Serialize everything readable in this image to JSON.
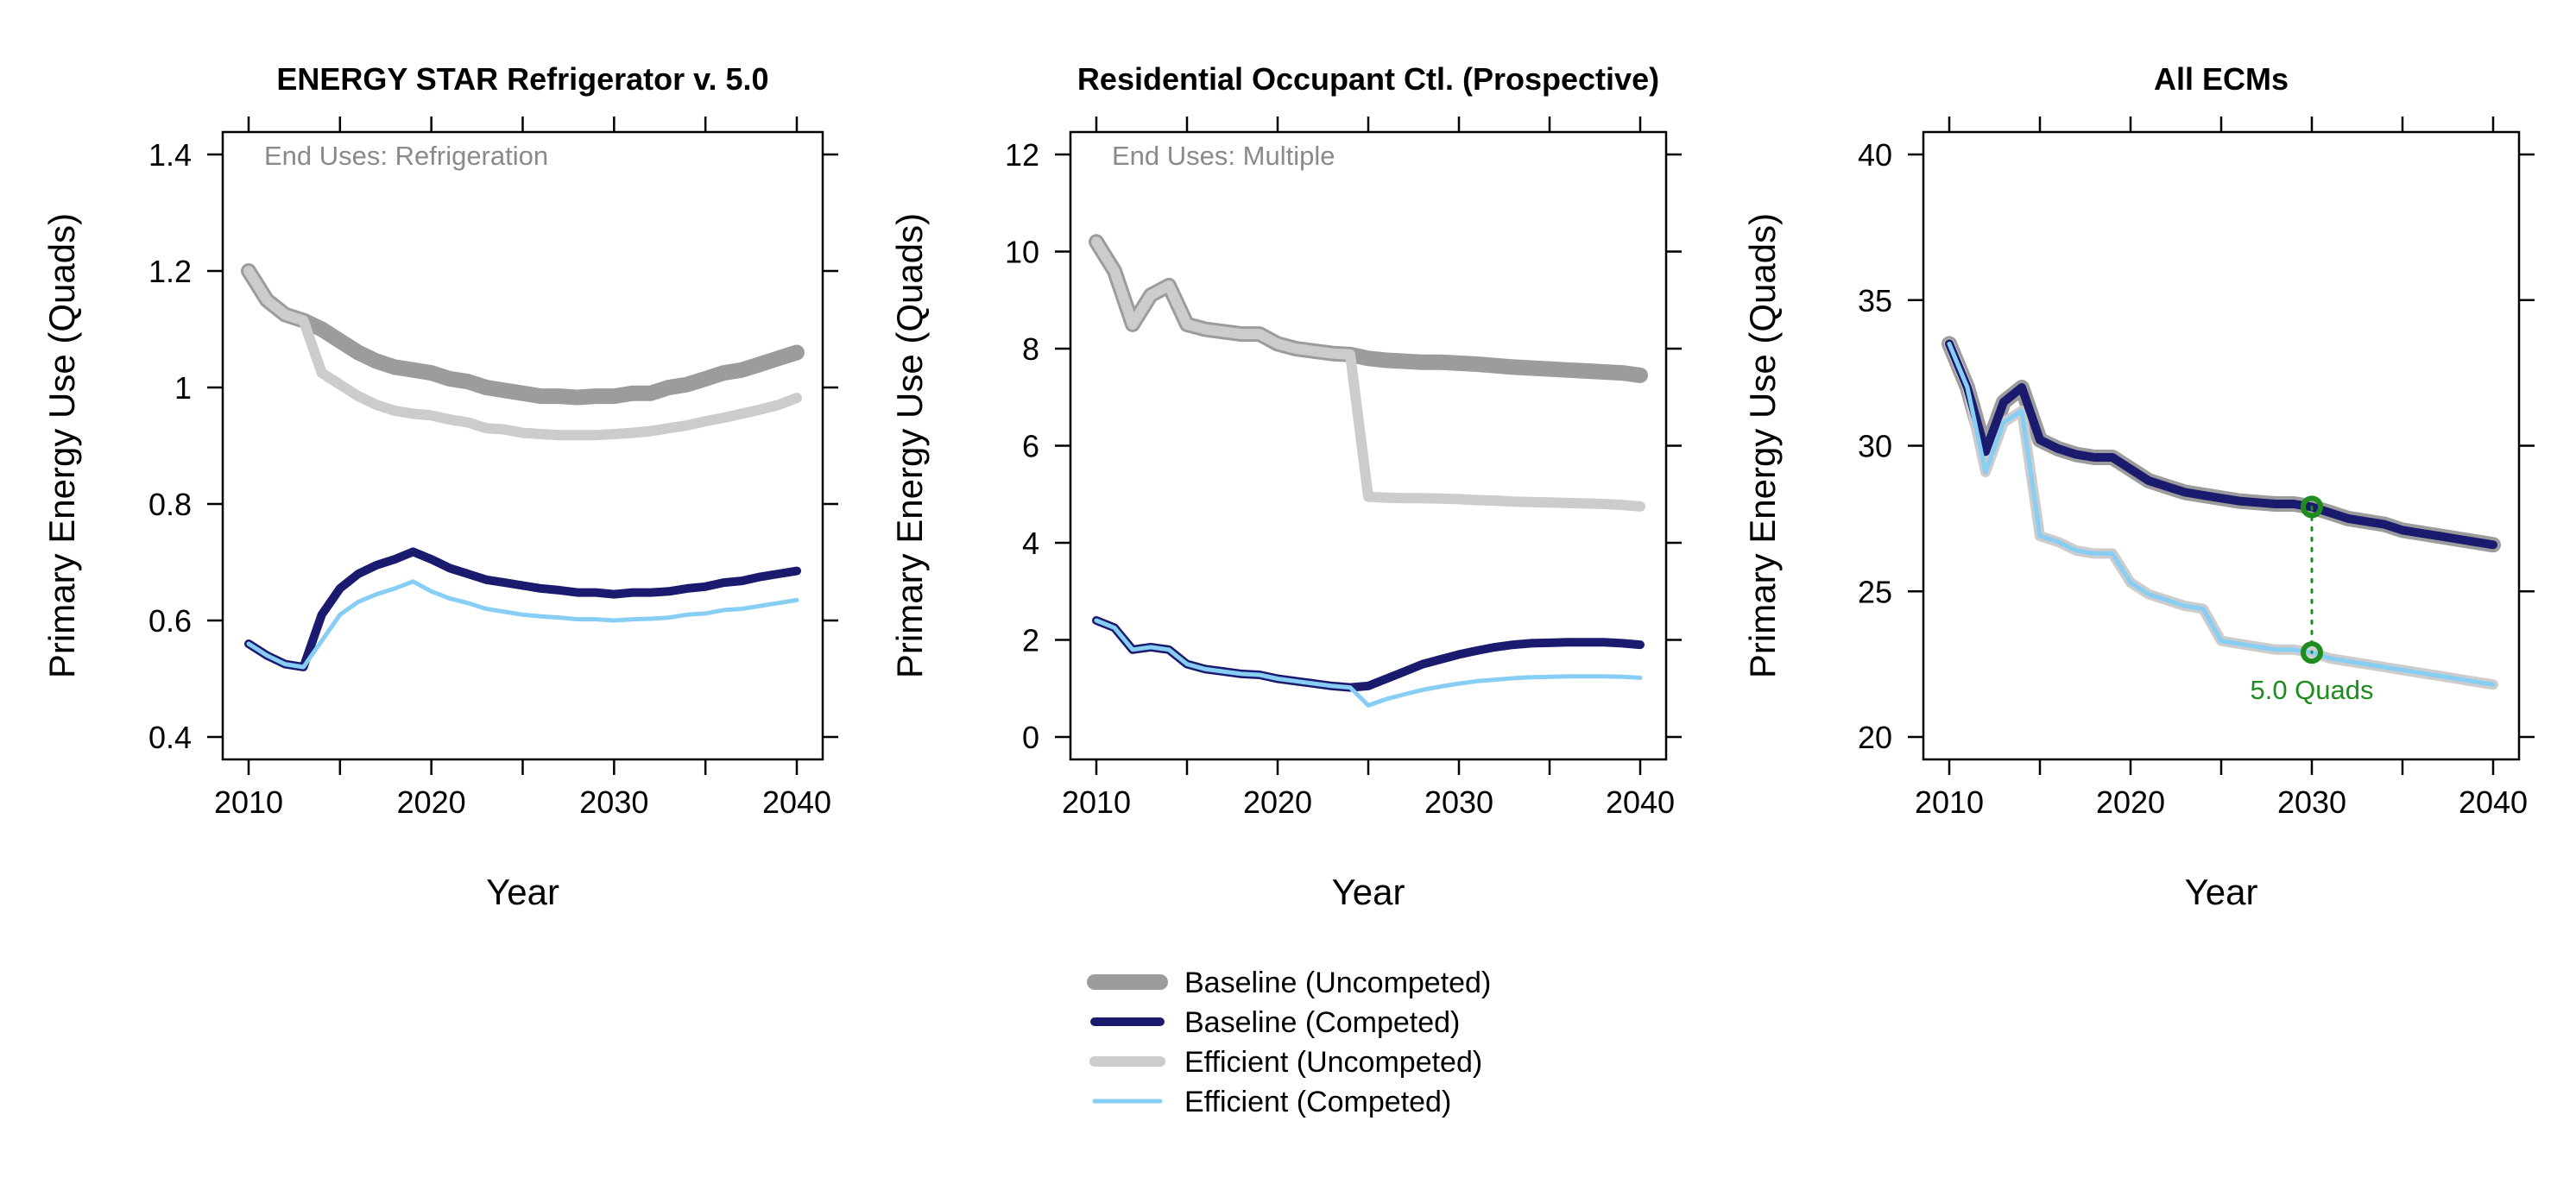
{
  "legend": [
    {
      "name": "Baseline (Uncompeted)",
      "color": "#9c9c9c"
    },
    {
      "name": "Baseline (Competed)",
      "color": "#1a1a6e"
    },
    {
      "name": "Efficient (Uncompeted)",
      "color": "#cccccc"
    },
    {
      "name": "Efficient (Competed)",
      "color": "#87cef5"
    }
  ],
  "chart_data": [
    {
      "type": "line",
      "title": "ENERGY STAR Refrigerator v. 5.0",
      "annotation": "End Uses: Refrigeration",
      "xlabel": "Year",
      "ylabel": "Primary Energy Use (Quads)",
      "xlim": [
        2010,
        2040
      ],
      "ylim": [
        0.4,
        1.4
      ],
      "xticks": [
        2010,
        2020,
        2030,
        2040
      ],
      "yticks": [
        0.4,
        0.6,
        0.8,
        1.0,
        1.2,
        1.4
      ],
      "ytick_labels": [
        "0.4",
        "0.6",
        "0.8",
        "1",
        "1.2",
        "1.4"
      ],
      "x": [
        2010,
        2011,
        2012,
        2013,
        2014,
        2015,
        2016,
        2017,
        2018,
        2019,
        2020,
        2021,
        2022,
        2023,
        2024,
        2025,
        2026,
        2027,
        2028,
        2029,
        2030,
        2031,
        2032,
        2033,
        2034,
        2035,
        2036,
        2037,
        2038,
        2039,
        2040
      ],
      "series": [
        {
          "name": "Baseline (Uncompeted)",
          "values": [
            1.2,
            1.15,
            1.125,
            1.115,
            1.1,
            1.08,
            1.06,
            1.045,
            1.035,
            1.03,
            1.025,
            1.015,
            1.01,
            1.0,
            0.995,
            0.99,
            0.985,
            0.985,
            0.983,
            0.985,
            0.985,
            0.99,
            0.99,
            1.0,
            1.005,
            1.015,
            1.025,
            1.03,
            1.04,
            1.05,
            1.06
          ]
        },
        {
          "name": "Efficient (Uncompeted)",
          "values": [
            1.2,
            1.15,
            1.125,
            1.115,
            1.025,
            1.005,
            0.985,
            0.97,
            0.96,
            0.955,
            0.952,
            0.945,
            0.94,
            0.93,
            0.928,
            0.922,
            0.92,
            0.918,
            0.918,
            0.918,
            0.92,
            0.922,
            0.925,
            0.93,
            0.935,
            0.942,
            0.948,
            0.955,
            0.962,
            0.97,
            0.982
          ]
        },
        {
          "name": "Baseline (Competed)",
          "values": [
            0.56,
            0.54,
            0.525,
            0.52,
            0.61,
            0.655,
            0.68,
            0.695,
            0.705,
            0.718,
            0.705,
            0.69,
            0.68,
            0.67,
            0.665,
            0.66,
            0.655,
            0.652,
            0.648,
            0.648,
            0.645,
            0.648,
            0.648,
            0.65,
            0.655,
            0.658,
            0.665,
            0.668,
            0.675,
            0.68,
            0.685
          ]
        },
        {
          "name": "Efficient (Competed)",
          "values": [
            0.56,
            0.54,
            0.525,
            0.52,
            0.565,
            0.61,
            0.632,
            0.645,
            0.655,
            0.667,
            0.65,
            0.638,
            0.63,
            0.62,
            0.615,
            0.61,
            0.607,
            0.605,
            0.602,
            0.602,
            0.6,
            0.602,
            0.603,
            0.605,
            0.61,
            0.612,
            0.618,
            0.62,
            0.625,
            0.63,
            0.635
          ]
        }
      ]
    },
    {
      "type": "line",
      "title": "Residential Occupant Ctl. (Prospective)",
      "annotation": "End Uses: Multiple",
      "xlabel": "Year",
      "ylabel": "Primary Energy Use (Quads)",
      "xlim": [
        2010,
        2040
      ],
      "ylim": [
        0,
        12
      ],
      "xticks": [
        2010,
        2020,
        2030,
        2040
      ],
      "yticks": [
        0,
        2,
        4,
        6,
        8,
        10,
        12
      ],
      "ytick_labels": [
        "0",
        "2",
        "4",
        "6",
        "8",
        "10",
        "12"
      ],
      "x": [
        2010,
        2011,
        2012,
        2013,
        2014,
        2015,
        2016,
        2017,
        2018,
        2019,
        2020,
        2021,
        2022,
        2023,
        2024,
        2025,
        2026,
        2027,
        2028,
        2029,
        2030,
        2031,
        2032,
        2033,
        2034,
        2035,
        2036,
        2037,
        2038,
        2039,
        2040
      ],
      "series": [
        {
          "name": "Baseline (Uncompeted)",
          "values": [
            10.2,
            9.6,
            8.5,
            9.1,
            9.3,
            8.5,
            8.4,
            8.35,
            8.3,
            8.3,
            8.1,
            8.0,
            7.95,
            7.9,
            7.88,
            7.8,
            7.76,
            7.74,
            7.72,
            7.72,
            7.7,
            7.68,
            7.65,
            7.62,
            7.6,
            7.58,
            7.56,
            7.54,
            7.52,
            7.5,
            7.45
          ]
        },
        {
          "name": "Efficient (Uncompeted)",
          "values": [
            10.2,
            9.6,
            8.5,
            9.1,
            9.3,
            8.5,
            8.4,
            8.35,
            8.3,
            8.3,
            8.1,
            8.0,
            7.95,
            7.9,
            7.88,
            4.95,
            4.93,
            4.92,
            4.92,
            4.91,
            4.9,
            4.88,
            4.87,
            4.85,
            4.84,
            4.83,
            4.82,
            4.81,
            4.8,
            4.78,
            4.75
          ]
        },
        {
          "name": "Baseline (Competed)",
          "values": [
            2.4,
            2.25,
            1.8,
            1.85,
            1.8,
            1.5,
            1.4,
            1.35,
            1.3,
            1.28,
            1.2,
            1.15,
            1.1,
            1.05,
            1.02,
            1.05,
            1.2,
            1.35,
            1.5,
            1.6,
            1.7,
            1.78,
            1.85,
            1.9,
            1.93,
            1.94,
            1.95,
            1.95,
            1.95,
            1.93,
            1.9
          ]
        },
        {
          "name": "Efficient (Competed)",
          "values": [
            2.4,
            2.25,
            1.8,
            1.85,
            1.8,
            1.5,
            1.4,
            1.35,
            1.3,
            1.28,
            1.2,
            1.15,
            1.1,
            1.05,
            1.02,
            0.65,
            0.78,
            0.88,
            0.97,
            1.04,
            1.1,
            1.15,
            1.18,
            1.21,
            1.23,
            1.24,
            1.25,
            1.25,
            1.25,
            1.24,
            1.22
          ]
        }
      ]
    },
    {
      "type": "line",
      "title": "All ECMs",
      "annotation": "",
      "xlabel": "Year",
      "ylabel": "Primary Energy Use (Quads)",
      "xlim": [
        2010,
        2040
      ],
      "ylim": [
        20,
        40
      ],
      "xticks": [
        2010,
        2020,
        2030,
        2040
      ],
      "yticks": [
        20,
        25,
        30,
        35,
        40
      ],
      "ytick_labels": [
        "20",
        "25",
        "30",
        "35",
        "40"
      ],
      "x": [
        2010,
        2011,
        2012,
        2013,
        2014,
        2015,
        2016,
        2017,
        2018,
        2019,
        2020,
        2021,
        2022,
        2023,
        2024,
        2025,
        2026,
        2027,
        2028,
        2029,
        2030,
        2031,
        2032,
        2033,
        2034,
        2035,
        2036,
        2037,
        2038,
        2039,
        2040
      ],
      "series": [
        {
          "name": "Baseline (Uncompeted)",
          "values": [
            33.5,
            32.0,
            29.8,
            31.5,
            32.0,
            30.2,
            29.9,
            29.7,
            29.6,
            29.6,
            29.2,
            28.8,
            28.6,
            28.4,
            28.3,
            28.2,
            28.1,
            28.05,
            28.0,
            28.0,
            27.9,
            27.7,
            27.5,
            27.4,
            27.3,
            27.1,
            27.0,
            26.9,
            26.8,
            26.7,
            26.6
          ]
        },
        {
          "name": "Efficient (Uncompeted)",
          "values": [
            33.5,
            32.0,
            29.1,
            30.8,
            31.2,
            26.9,
            26.7,
            26.4,
            26.3,
            26.3,
            25.3,
            24.9,
            24.7,
            24.5,
            24.4,
            23.3,
            23.2,
            23.1,
            23.0,
            23.0,
            22.9,
            22.7,
            22.6,
            22.5,
            22.4,
            22.3,
            22.2,
            22.1,
            22.0,
            21.9,
            21.8
          ]
        },
        {
          "name": "Baseline (Competed)",
          "values": [
            33.5,
            32.0,
            29.8,
            31.5,
            32.0,
            30.2,
            29.9,
            29.7,
            29.6,
            29.6,
            29.2,
            28.8,
            28.6,
            28.4,
            28.3,
            28.2,
            28.1,
            28.05,
            28.0,
            28.0,
            27.9,
            27.7,
            27.5,
            27.4,
            27.3,
            27.1,
            27.0,
            26.9,
            26.8,
            26.7,
            26.6
          ]
        },
        {
          "name": "Efficient (Competed)",
          "values": [
            33.5,
            32.0,
            29.1,
            30.8,
            31.2,
            26.9,
            26.7,
            26.4,
            26.3,
            26.3,
            25.3,
            24.9,
            24.7,
            24.5,
            24.4,
            23.3,
            23.2,
            23.1,
            23.0,
            23.0,
            22.9,
            22.7,
            22.6,
            22.5,
            22.4,
            22.3,
            22.2,
            22.1,
            22.0,
            21.9,
            21.8
          ]
        }
      ],
      "savings_marker": {
        "x": 2030,
        "y_top": 27.9,
        "y_bottom": 22.9,
        "label": "5.0 Quads",
        "color": "#1e8c1e"
      }
    }
  ]
}
